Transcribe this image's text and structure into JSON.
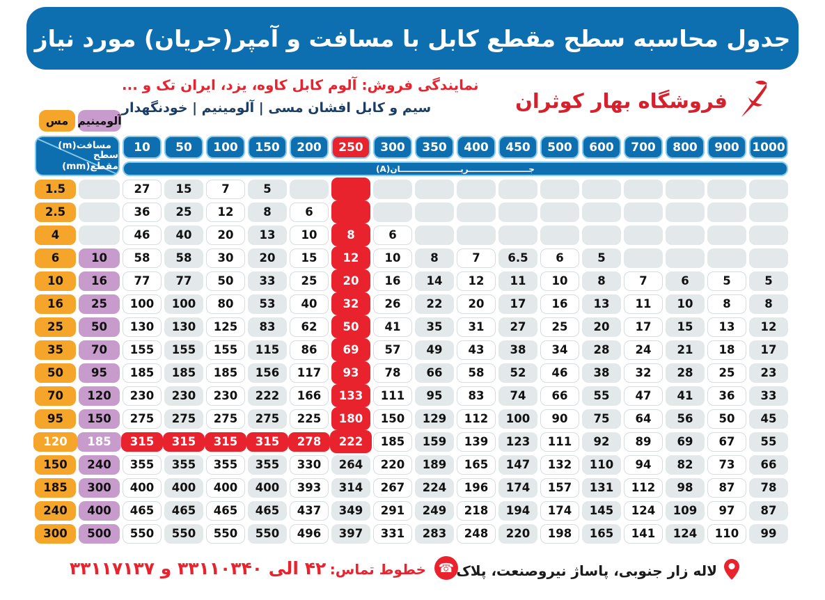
{
  "title": "جدول محاسبه سطح مقطع کابل با مسافت و آمپر(جریان) مورد نیاز",
  "store_name": "فروشگاه بهار کوثران",
  "dealer_line": "نمایندگی فروش: آلوم کابل کاوه، یزد، ایران تک و ...",
  "products_line": "سیم و کابل افشان مسی | آلومینیم | خودنگهدار",
  "legend": {
    "copper": "مس",
    "aluminum": "آلومینیم"
  },
  "corner": {
    "top": "مسافت(m)",
    "bottom": "سطح مقطع(mm)"
  },
  "current_band_label": "جـــــــــــــــــــــریـــــــــــــــــــــان(A)",
  "table": {
    "columns": [
      10,
      50,
      100,
      150,
      200,
      250,
      300,
      350,
      400,
      450,
      500,
      600,
      700,
      800,
      900,
      1000
    ],
    "red_col_index": 5,
    "red_col_until_row": 11,
    "red_row_index": 11,
    "rows": [
      {
        "cu": "1.5",
        "al": null,
        "values": [
          27,
          15,
          7,
          5,
          null,
          null,
          null,
          null,
          null,
          null,
          null,
          null,
          null,
          null,
          null,
          null
        ]
      },
      {
        "cu": "2.5",
        "al": null,
        "values": [
          36,
          25,
          12,
          8,
          6,
          null,
          null,
          null,
          null,
          null,
          null,
          null,
          null,
          null,
          null,
          null
        ]
      },
      {
        "cu": "4",
        "al": null,
        "values": [
          46,
          40,
          20,
          13,
          10,
          8,
          6,
          null,
          null,
          null,
          null,
          null,
          null,
          null,
          null,
          null
        ]
      },
      {
        "cu": "6",
        "al": "10",
        "values": [
          58,
          58,
          30,
          20,
          15,
          12,
          10,
          8,
          7,
          6.5,
          6,
          5,
          null,
          null,
          null,
          null
        ]
      },
      {
        "cu": "10",
        "al": "16",
        "values": [
          77,
          77,
          50,
          33,
          25,
          20,
          16,
          14,
          12,
          11,
          10,
          8,
          7,
          6,
          5,
          5
        ]
      },
      {
        "cu": "16",
        "al": "25",
        "values": [
          100,
          100,
          80,
          53,
          40,
          32,
          26,
          22,
          20,
          17,
          16,
          13,
          11,
          10,
          8,
          8
        ]
      },
      {
        "cu": "25",
        "al": "50",
        "values": [
          130,
          130,
          125,
          83,
          62,
          50,
          41,
          35,
          31,
          27,
          25,
          20,
          17,
          15,
          13,
          12
        ]
      },
      {
        "cu": "35",
        "al": "70",
        "values": [
          155,
          155,
          155,
          115,
          86,
          69,
          57,
          49,
          43,
          38,
          34,
          28,
          24,
          21,
          18,
          17
        ]
      },
      {
        "cu": "50",
        "al": "95",
        "values": [
          185,
          185,
          185,
          156,
          117,
          93,
          78,
          66,
          58,
          52,
          46,
          38,
          32,
          28,
          25,
          23
        ]
      },
      {
        "cu": "70",
        "al": "120",
        "values": [
          230,
          230,
          230,
          222,
          166,
          133,
          111,
          95,
          83,
          74,
          66,
          55,
          47,
          41,
          36,
          33
        ]
      },
      {
        "cu": "95",
        "al": "150",
        "values": [
          275,
          275,
          275,
          275,
          225,
          180,
          150,
          129,
          112,
          100,
          90,
          75,
          64,
          56,
          50,
          45
        ]
      },
      {
        "cu": "120",
        "al": "185",
        "values": [
          315,
          315,
          315,
          315,
          278,
          222,
          185,
          159,
          139,
          123,
          111,
          92,
          89,
          69,
          67,
          55
        ]
      },
      {
        "cu": "150",
        "al": "240",
        "values": [
          355,
          355,
          355,
          355,
          330,
          264,
          220,
          189,
          165,
          147,
          132,
          110,
          94,
          82,
          73,
          66
        ]
      },
      {
        "cu": "185",
        "al": "300",
        "values": [
          400,
          400,
          400,
          400,
          393,
          314,
          267,
          224,
          196,
          174,
          157,
          131,
          112,
          98,
          87,
          78
        ]
      },
      {
        "cu": "240",
        "al": "400",
        "values": [
          465,
          465,
          465,
          465,
          437,
          349,
          291,
          249,
          218,
          194,
          174,
          145,
          124,
          109,
          97,
          87
        ]
      },
      {
        "cu": "300",
        "al": "500",
        "values": [
          550,
          550,
          550,
          550,
          496,
          397,
          331,
          283,
          248,
          220,
          198,
          165,
          141,
          124,
          110,
          99
        ]
      }
    ]
  },
  "footer": {
    "address": "لاله زار جنوبی، پاساژ نیروصنعت، پلاک ۶",
    "phone_label": "خطوط تماس:",
    "phone_numbers": "۴۲ الی ۳۳۱۱۰۳۴۰ و ۳۳۱۱۷۱۳۷"
  },
  "colors": {
    "blue": "#0d6eb0",
    "light_blue_border": "#85c9eb",
    "red": "#e8232e",
    "orange": "#f4a52a",
    "purple": "#c79bcb",
    "gray_cell": "#e3e8ea"
  }
}
